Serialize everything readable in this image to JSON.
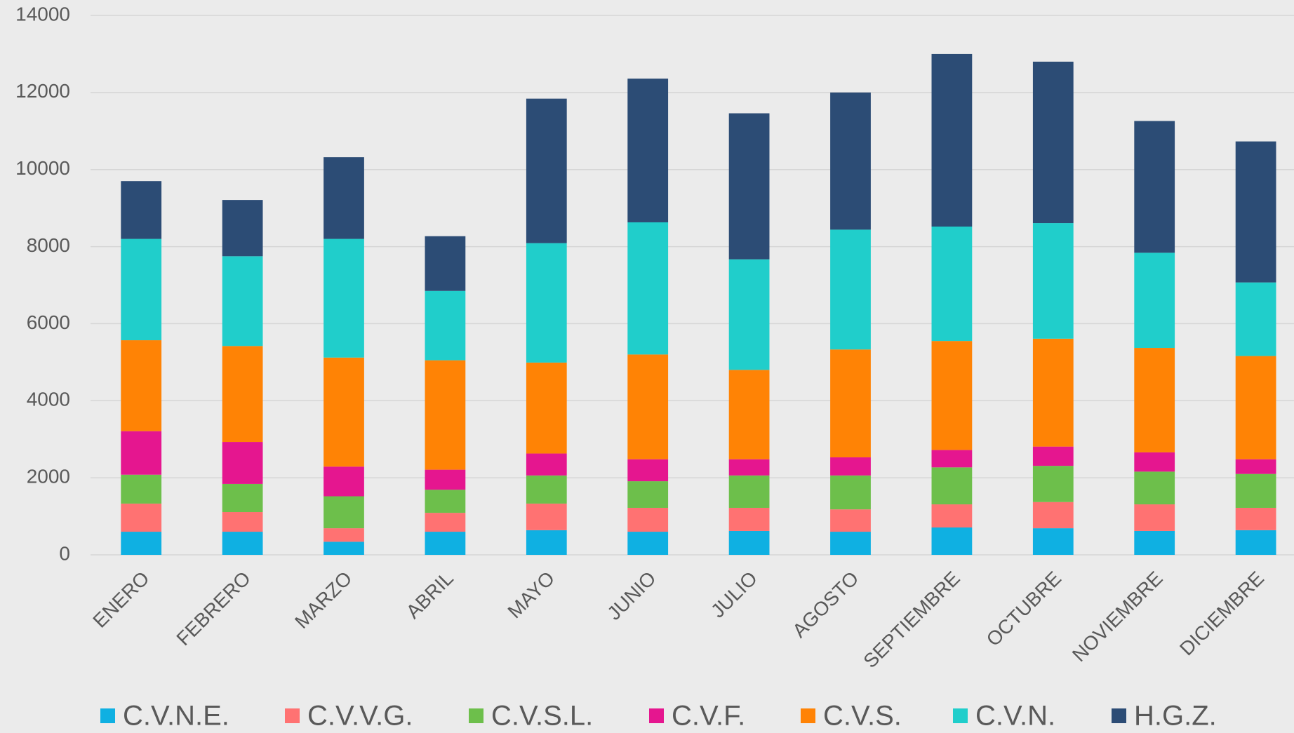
{
  "chart_data": {
    "type": "stacked_bar",
    "categories": [
      "ENERO",
      "FEBRERO",
      "MARZO",
      "ABRIL",
      "MAYO",
      "JUNIO",
      "JULIO",
      "AGOSTO",
      "SEPTIEMBRE",
      "OCTUBRE",
      "NOVIEMBRE",
      "DICIEMBRE"
    ],
    "series": [
      {
        "name": "C.V.N.E.",
        "color": "#0fb0e2",
        "values": [
          600,
          600,
          340,
          600,
          640,
          600,
          620,
          600,
          710,
          690,
          620,
          640
        ]
      },
      {
        "name": "C.V.V.G.",
        "color": "#ff7272",
        "values": [
          730,
          510,
          350,
          490,
          690,
          620,
          600,
          580,
          600,
          680,
          690,
          580
        ]
      },
      {
        "name": "C.V.S.L.",
        "color": "#6dbf4b",
        "values": [
          750,
          730,
          830,
          600,
          730,
          690,
          840,
          880,
          960,
          940,
          850,
          880
        ]
      },
      {
        "name": "C.V.F.",
        "color": "#e5168f",
        "values": [
          1130,
          1090,
          770,
          520,
          570,
          570,
          420,
          470,
          450,
          500,
          500,
          380
        ]
      },
      {
        "name": "C.V.S.",
        "color": "#ff8305",
        "values": [
          2360,
          2490,
          2830,
          2840,
          2360,
          2720,
          2320,
          2800,
          2830,
          2800,
          2710,
          2680
        ]
      },
      {
        "name": "C.V.N.",
        "color": "#20cecb",
        "values": [
          2630,
          2330,
          3080,
          1800,
          3100,
          3430,
          2870,
          3110,
          2970,
          3000,
          2470,
          1910
        ]
      },
      {
        "name": "H.G.Z.",
        "color": "#2c4c75",
        "values": [
          1500,
          1460,
          2120,
          1420,
          3750,
          3730,
          3790,
          3560,
          4480,
          4190,
          3420,
          3660
        ]
      }
    ],
    "ylim": [
      0,
      14000
    ],
    "yticks": [
      0,
      2000,
      4000,
      6000,
      8000,
      10000,
      12000,
      14000
    ],
    "grid": true,
    "legend": "bottom"
  }
}
